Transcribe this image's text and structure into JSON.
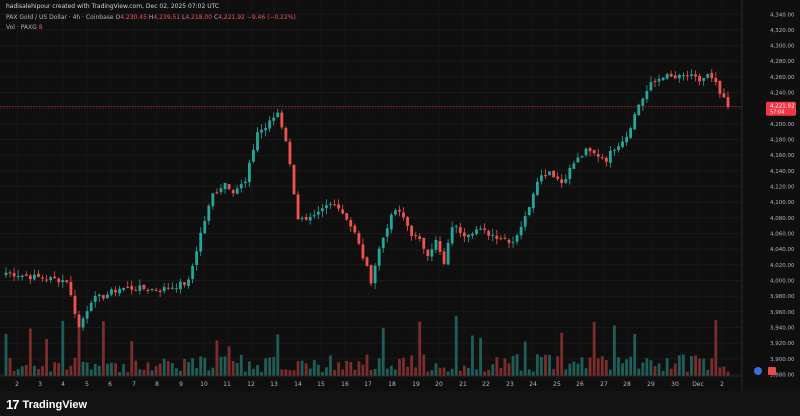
{
  "header": {
    "credit": "hadisalehipour created with TradingView.com, Dec 02, 2025 07:02 UTC",
    "symbol": "PAX Gold / US Dollar · 4h · Coinbase",
    "ohlc": [
      {
        "k": "O",
        "v": "4,230.45"
      },
      {
        "k": "H",
        "v": "4,239.51"
      },
      {
        "k": "L",
        "v": "4,218.00"
      },
      {
        "k": "C",
        "v": "4,221.92"
      }
    ],
    "change": "−9.46 (−0.22%)",
    "volume_label": "Vol · PAXG",
    "volume_value": "8"
  },
  "footer": {
    "logo_mark": "17",
    "logo_text": "TradingView"
  },
  "chart_data": {
    "type": "candlestick",
    "symbol": "PAXG/USD",
    "interval": "4h",
    "colors": {
      "up": "#26a69a",
      "down": "#ef5350",
      "vol_up": "#1f5e58",
      "vol_down": "#7a2e2c",
      "last_price": "#f23645"
    },
    "y_ticks": [
      "4,340.00",
      "4,320.00",
      "4,300.00",
      "4,280.00",
      "4,260.00",
      "4,240.00",
      "4,220.00",
      "4,200.00",
      "4,180.00",
      "4,160.00",
      "4,140.00",
      "4,120.00",
      "4,100.00",
      "4,080.00",
      "4,060.00",
      "4,040.00",
      "4,020.00",
      "4,000.00",
      "3,980.00",
      "3,960.00",
      "3,940.00",
      "3,920.00",
      "3,900.00",
      "3,880.00"
    ],
    "ylim": [
      3878,
      4348
    ],
    "x_ticks": [
      "2",
      "3",
      "4",
      "5",
      "6",
      "7",
      "8",
      "9",
      "10",
      "11",
      "12",
      "13",
      "14",
      "15",
      "16",
      "17",
      "18",
      "19",
      "20",
      "21",
      "22",
      "23",
      "24",
      "25",
      "26",
      "27",
      "28",
      "29",
      "30",
      "Dec",
      "2",
      "3"
    ],
    "last_price": {
      "value": 4221.92,
      "label": "4,221.92",
      "countdown": "57:04"
    },
    "anchors": [
      [
        0,
        4010
      ],
      [
        6,
        4005
      ],
      [
        11,
        4002
      ],
      [
        15,
        4000
      ],
      [
        17,
        3960
      ],
      [
        18,
        3940
      ],
      [
        21,
        3975
      ],
      [
        24,
        3980
      ],
      [
        28,
        3990
      ],
      [
        33,
        3990
      ],
      [
        38,
        3988
      ],
      [
        41,
        3992
      ],
      [
        45,
        3998
      ],
      [
        48,
        4060
      ],
      [
        51,
        4110
      ],
      [
        54,
        4125
      ],
      [
        56,
        4115
      ],
      [
        59,
        4125
      ],
      [
        62,
        4190
      ],
      [
        64,
        4195
      ],
      [
        67,
        4215
      ],
      [
        69,
        4180
      ],
      [
        72,
        4080
      ],
      [
        74,
        4075
      ],
      [
        76,
        4080
      ],
      [
        79,
        4095
      ],
      [
        81,
        4100
      ],
      [
        84,
        4080
      ],
      [
        86,
        4060
      ],
      [
        88,
        4030
      ],
      [
        90,
        4000
      ],
      [
        92,
        4040
      ],
      [
        94,
        4070
      ],
      [
        96,
        4090
      ],
      [
        98,
        4080
      ],
      [
        100,
        4060
      ],
      [
        102,
        4050
      ],
      [
        104,
        4035
      ],
      [
        106,
        4050
      ],
      [
        108,
        4020
      ],
      [
        110,
        4070
      ],
      [
        113,
        4060
      ],
      [
        116,
        4065
      ],
      [
        119,
        4060
      ],
      [
        122,
        4055
      ],
      [
        125,
        4050
      ],
      [
        128,
        4080
      ],
      [
        131,
        4130
      ],
      [
        134,
        4140
      ],
      [
        137,
        4125
      ],
      [
        140,
        4150
      ],
      [
        143,
        4165
      ],
      [
        146,
        4160
      ],
      [
        148,
        4155
      ],
      [
        150,
        4170
      ],
      [
        153,
        4185
      ],
      [
        156,
        4225
      ],
      [
        159,
        4250
      ],
      [
        162,
        4262
      ],
      [
        165,
        4258
      ],
      [
        168,
        4262
      ],
      [
        171,
        4255
      ],
      [
        173,
        4262
      ],
      [
        175,
        4250
      ],
      [
        176,
        4238
      ],
      [
        178,
        4222
      ]
    ],
    "volume_ylim": [
      0,
      100
    ]
  }
}
